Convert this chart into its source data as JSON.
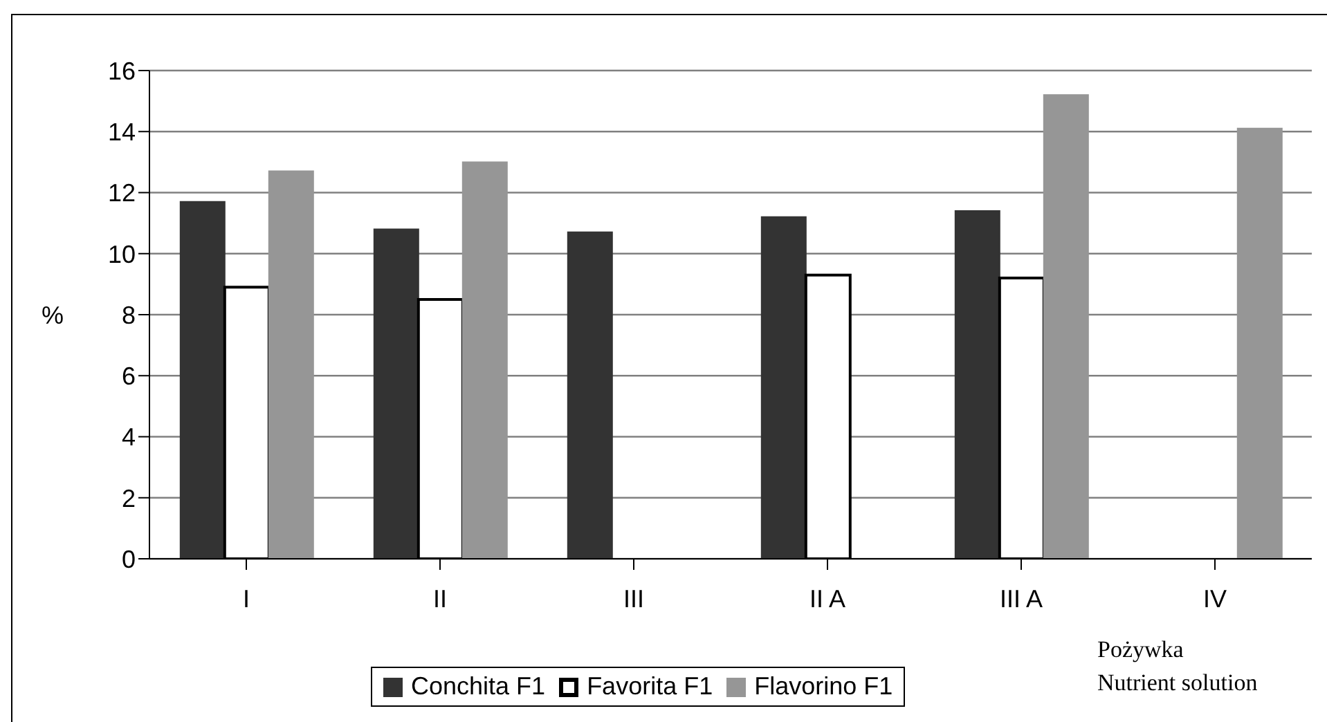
{
  "chart_data": {
    "type": "bar",
    "categories": [
      "I",
      "II",
      "III",
      "II A",
      "III A",
      "IV"
    ],
    "series": [
      {
        "name": "Conchita F1",
        "color": "#333333",
        "values": [
          11.7,
          10.8,
          10.7,
          11.2,
          11.4,
          null
        ]
      },
      {
        "name": "Favorita F1",
        "color": "#ffffff",
        "values": [
          8.9,
          8.5,
          null,
          9.3,
          9.2,
          null
        ]
      },
      {
        "name": "Flavorino F1",
        "color": "#969696",
        "values": [
          12.7,
          13.0,
          null,
          null,
          15.2,
          14.1
        ]
      }
    ],
    "ylabel": "%",
    "xlabel": "Pożywka\nNutrient solution",
    "ylim": [
      0,
      16
    ],
    "yticks": [
      0,
      2,
      4,
      6,
      8,
      10,
      12,
      14,
      16
    ],
    "grid": "y",
    "legend": "bottom"
  }
}
